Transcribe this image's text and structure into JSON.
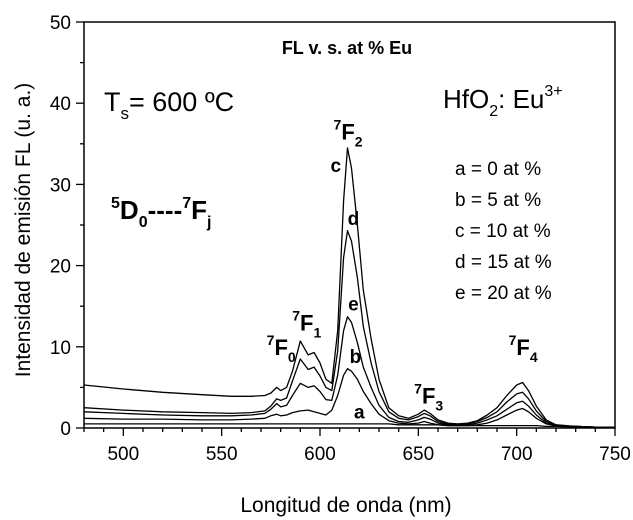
{
  "chart_data": {
    "type": "line",
    "title": "FL v. s. at % Eu",
    "xlabel": "Longitud de onda (nm)",
    "ylabel": "Intensidad de emisión FL (u. a.)",
    "xlim": [
      480,
      750
    ],
    "ylim": [
      0,
      50
    ],
    "x_ticks": [
      500,
      550,
      600,
      650,
      700,
      750
    ],
    "y_ticks": [
      0,
      10,
      20,
      30,
      40,
      50
    ],
    "grid": false,
    "temperature_label": {
      "main": "T",
      "sub": "s",
      "rest": "= 600 ºC"
    },
    "sample_label": {
      "main": "HfO",
      "sub": "2",
      "mid": ": Eu",
      "sup": "3+"
    },
    "transition_label": {
      "sup1": "5",
      "main1": "D",
      "sub1": "0",
      "dashes": "----",
      "sup2": "7",
      "main2": "F",
      "sub2": "j"
    },
    "legend": {
      "placement": "right",
      "entries": [
        "a = 0 at %",
        "b = 5 at %",
        "c = 10 at %",
        "d = 15 at %",
        "e = 20 at %"
      ]
    },
    "peak_labels": [
      {
        "sup": "7",
        "main": "F",
        "sub": "0",
        "x": 580,
        "y": 9
      },
      {
        "sup": "7",
        "main": "F",
        "sub": "1",
        "x": 593,
        "y": 12
      },
      {
        "sup": "7",
        "main": "F",
        "sub": "2",
        "x": 614,
        "y": 35.5
      },
      {
        "sup": "7",
        "main": "F",
        "sub": "3",
        "x": 655,
        "y": 3
      },
      {
        "sup": "7",
        "main": "F",
        "sub": "4",
        "x": 703,
        "y": 9
      }
    ],
    "curve_labels": [
      {
        "text": "a",
        "x": 620,
        "y": 1.2
      },
      {
        "text": "b",
        "x": 618,
        "y": 8
      },
      {
        "text": "c",
        "x": 608,
        "y": 31.5
      },
      {
        "text": "d",
        "x": 617,
        "y": 25
      },
      {
        "text": "e",
        "x": 617,
        "y": 14.5
      }
    ],
    "x": [
      480,
      500,
      520,
      540,
      555,
      565,
      572,
      575,
      578,
      580,
      583,
      586,
      590,
      594,
      597,
      600,
      603,
      606,
      609,
      612,
      614,
      616,
      619,
      622,
      626,
      630,
      635,
      640,
      645,
      650,
      653,
      656,
      660,
      665,
      670,
      675,
      680,
      685,
      690,
      695,
      700,
      703,
      706,
      710,
      715,
      720,
      730,
      740,
      750
    ],
    "series": [
      {
        "name": "a",
        "values": [
          0.5,
          0.5,
          0.5,
          0.5,
          0.5,
          0.5,
          0.5,
          0.5,
          0.5,
          0.5,
          0.5,
          0.5,
          0.5,
          0.5,
          0.5,
          0.5,
          0.5,
          0.5,
          0.5,
          0.5,
          0.5,
          0.5,
          0.5,
          0.5,
          0.5,
          0.5,
          0.5,
          0.4,
          0.4,
          0.4,
          0.4,
          0.4,
          0.4,
          0.3,
          0.3,
          0.3,
          0.3,
          0.3,
          0.3,
          0.3,
          0.3,
          0.3,
          0.3,
          0.3,
          0.2,
          0.2,
          0.2,
          0.1,
          0.1
        ]
      },
      {
        "name": "b",
        "values": [
          1.2,
          1.1,
          1.1,
          1.0,
          1.0,
          1.1,
          1.2,
          1.5,
          1.7,
          1.5,
          1.6,
          1.9,
          2.1,
          2.2,
          2.0,
          1.8,
          1.6,
          2.2,
          4.0,
          6.5,
          7.3,
          7.0,
          6.0,
          4.5,
          3.0,
          1.7,
          0.9,
          0.6,
          0.5,
          0.6,
          0.8,
          0.6,
          0.4,
          0.3,
          0.3,
          0.3,
          0.4,
          0.6,
          1.0,
          1.6,
          2.2,
          2.4,
          2.0,
          1.2,
          0.5,
          0.3,
          0.2,
          0.1,
          0.1
        ]
      },
      {
        "name": "c",
        "values": [
          5.3,
          4.8,
          4.4,
          4.1,
          3.9,
          3.9,
          4.0,
          4.3,
          5.0,
          4.6,
          5.0,
          7.0,
          10.7,
          9.0,
          9.3,
          8.0,
          6.0,
          5.5,
          12.0,
          28.0,
          34.5,
          32.0,
          25.0,
          17.0,
          11.0,
          6.0,
          2.5,
          1.5,
          1.2,
          1.7,
          2.2,
          1.8,
          1.0,
          0.6,
          0.5,
          0.6,
          0.9,
          1.6,
          2.5,
          4.0,
          5.3,
          5.6,
          4.6,
          2.7,
          1.0,
          0.4,
          0.2,
          0.1,
          0.1
        ]
      },
      {
        "name": "d",
        "values": [
          2.5,
          2.2,
          2.0,
          1.9,
          1.8,
          1.9,
          2.1,
          2.7,
          3.6,
          3.4,
          3.7,
          5.8,
          8.5,
          7.2,
          7.5,
          6.4,
          5.0,
          4.6,
          9.5,
          21.0,
          24.3,
          23.0,
          18.5,
          12.5,
          8.0,
          4.5,
          2.0,
          1.2,
          1.0,
          1.4,
          1.8,
          1.5,
          0.8,
          0.5,
          0.4,
          0.5,
          0.8,
          1.3,
          2.0,
          3.2,
          4.2,
          4.4,
          3.6,
          2.1,
          0.8,
          0.3,
          0.2,
          0.1,
          0.1
        ]
      },
      {
        "name": "e",
        "values": [
          2.0,
          1.8,
          1.6,
          1.5,
          1.5,
          1.6,
          1.8,
          2.3,
          3.0,
          2.6,
          2.8,
          4.0,
          5.5,
          5.0,
          5.2,
          4.5,
          3.5,
          3.4,
          6.5,
          12.0,
          13.7,
          13.0,
          10.5,
          7.5,
          5.0,
          2.8,
          1.3,
          0.8,
          0.7,
          1.0,
          1.3,
          1.1,
          0.6,
          0.4,
          0.3,
          0.4,
          0.6,
          1.0,
          1.5,
          2.3,
          3.1,
          3.3,
          2.7,
          1.6,
          0.6,
          0.2,
          0.1,
          0.1,
          0.1
        ]
      }
    ]
  }
}
